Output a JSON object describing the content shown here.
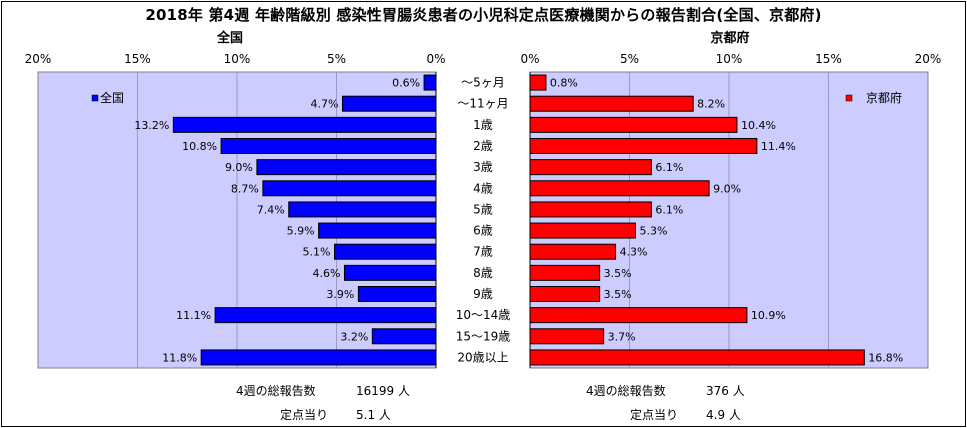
{
  "title": "2018年 第4週 年齢階級別 感染性胃腸炎患者の小児科定点医療機関からの報告割合(全国、京都府)",
  "chart_data": {
    "type": "bar",
    "orientation": "horizontal",
    "categories": [
      "～5ヶ月",
      "～11ヶ月",
      "1歳",
      "2歳",
      "3歳",
      "4歳",
      "5歳",
      "6歳",
      "7歳",
      "8歳",
      "9歳",
      "10～14歳",
      "15～19歳",
      "20歳以上"
    ],
    "panels": [
      {
        "title": "全国",
        "legend": "全国",
        "legend_position": "top-left",
        "direction": "reversed",
        "color": "#0000FF",
        "xlim": [
          0,
          20
        ],
        "ticks": [
          "0%",
          "5%",
          "10%",
          "15%",
          "20%"
        ],
        "values": [
          0.6,
          4.7,
          13.2,
          10.8,
          9.0,
          8.7,
          7.4,
          5.9,
          5.1,
          4.6,
          3.9,
          11.1,
          3.2,
          11.8
        ],
        "labels": [
          "0.6%",
          "4.7%",
          "13.2%",
          "10.8%",
          "9.0%",
          "8.7%",
          "7.4%",
          "5.9%",
          "5.1%",
          "4.6%",
          "3.9%",
          "11.1%",
          "3.2%",
          "11.8%"
        ]
      },
      {
        "title": "京都府",
        "legend": "京都府",
        "legend_position": "top-right",
        "direction": "normal",
        "color": "#FF0000",
        "xlim": [
          0,
          20
        ],
        "ticks": [
          "0%",
          "5%",
          "10%",
          "15%",
          "20%"
        ],
        "values": [
          0.8,
          8.2,
          10.4,
          11.4,
          6.1,
          9.0,
          6.1,
          5.3,
          4.3,
          3.5,
          3.5,
          10.9,
          3.7,
          16.8
        ],
        "labels": [
          "0.8%",
          "8.2%",
          "10.4%",
          "11.4%",
          "6.1%",
          "9.0%",
          "6.1%",
          "5.3%",
          "4.3%",
          "3.5%",
          "3.5%",
          "10.9%",
          "3.7%",
          "16.8%"
        ]
      }
    ],
    "plot_background": "#CCCCFF",
    "grid": true
  },
  "stats": {
    "national": {
      "total_label": "4週の総報告数",
      "total_value": "16199 人",
      "per_label": "定点当り",
      "per_value": "5.1 人"
    },
    "kyoto": {
      "total_label": "4週の総報告数",
      "total_value": "376 人",
      "per_label": "定点当り",
      "per_value": "4.9 人"
    }
  }
}
